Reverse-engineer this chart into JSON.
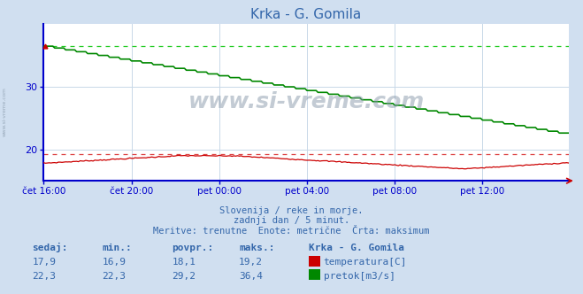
{
  "title": "Krka - G. Gomila",
  "bg_color": "#d0dff0",
  "plot_bg_color": "#ffffff",
  "grid_color": "#c8d8e8",
  "title_color": "#3366aa",
  "text_color": "#3366aa",
  "temp_color": "#cc0000",
  "flow_color": "#008800",
  "dashed_temp_color": "#dd4444",
  "dashed_flow_color": "#22cc22",
  "axis_color": "#0000cc",
  "watermark_color": "#99aabb",
  "x_labels": [
    "čet 16:00",
    "čet 20:00",
    "pet 00:00",
    "pet 04:00",
    "pet 08:00",
    "pet 12:00"
  ],
  "y_ticks": [
    20,
    30
  ],
  "y_min": 15.0,
  "y_max": 40.0,
  "temp_max_line": 19.2,
  "flow_max_line": 36.4,
  "n_points": 288,
  "subtitle1": "Slovenija / reke in morje.",
  "subtitle2": "zadnji dan / 5 minut.",
  "subtitle3": "Meritve: trenutne  Enote: metrične  Črta: maksimum",
  "col_headers": [
    "sedaj:",
    "min.:",
    "povpr.:",
    "maks.:",
    "Krka - G. Gomila"
  ],
  "row1_vals": [
    "17,9",
    "16,9",
    "18,1",
    "19,2"
  ],
  "row2_vals": [
    "22,3",
    "22,3",
    "29,2",
    "36,4"
  ],
  "label1": "temperatura[C]",
  "label2": "pretok[m3/s]"
}
